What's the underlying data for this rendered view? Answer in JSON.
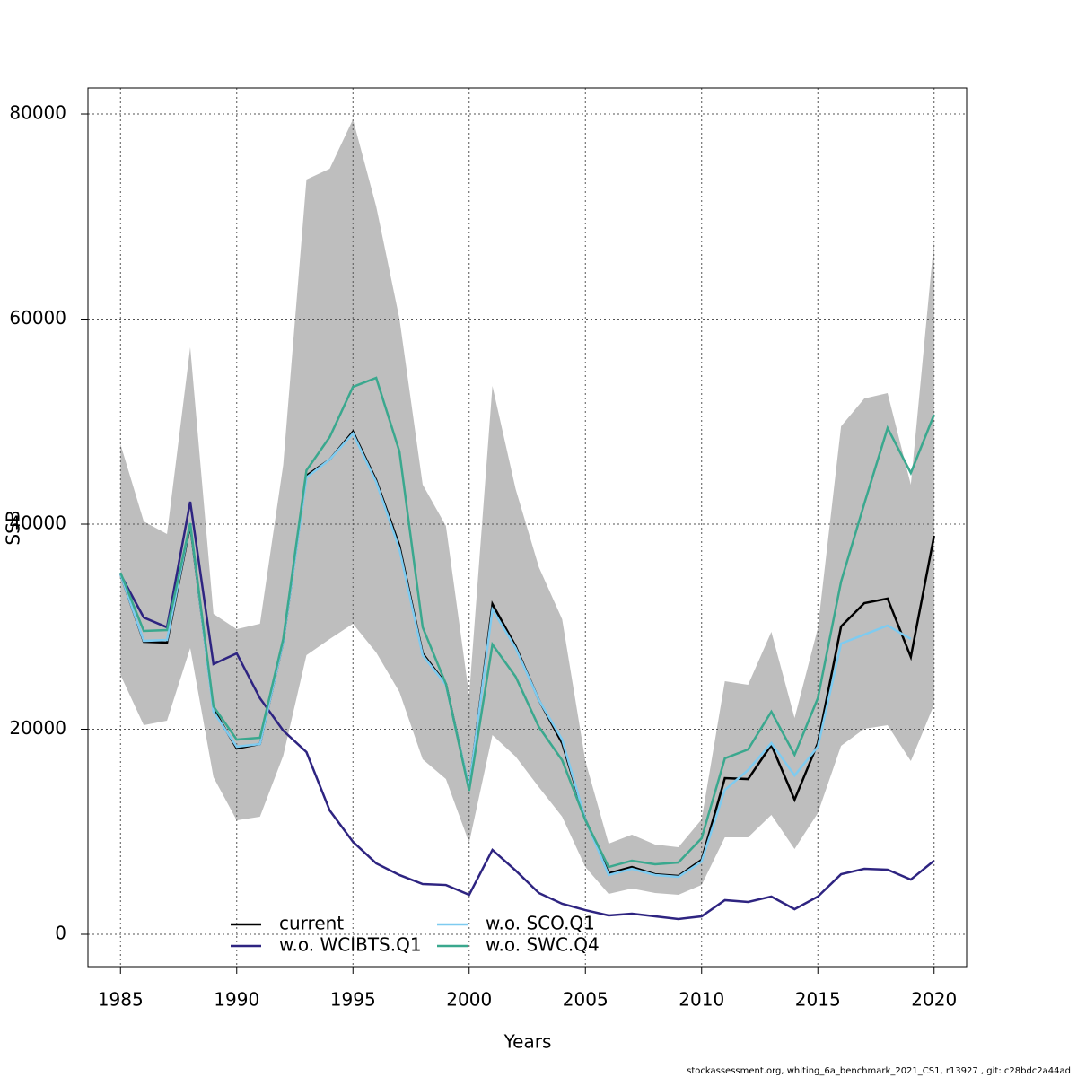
{
  "chart_data": {
    "type": "line",
    "xlabel": "Years",
    "ylabel": "SSB",
    "footer": "stockassessment.org, whiting_6a_benchmark_2021_CS1, r13927 , git: c28bdc2a44ad",
    "x": [
      1985,
      1986,
      1987,
      1988,
      1989,
      1990,
      1991,
      1992,
      1993,
      1994,
      1995,
      1996,
      1997,
      1998,
      1999,
      2000,
      2001,
      2002,
      2003,
      2004,
      2005,
      2006,
      2007,
      2008,
      2009,
      2010,
      2011,
      2012,
      2013,
      2014,
      2015,
      2016,
      2017,
      2018,
      2019,
      2020
    ],
    "band_color": "#bebebe",
    "band_upper": [
      47790,
      40260,
      39040,
      57250,
      31250,
      29760,
      30290,
      45780,
      73610,
      74660,
      79480,
      70990,
      60050,
      43850,
      39830,
      23280,
      53480,
      43410,
      35800,
      30720,
      16890,
      8840,
      9720,
      8750,
      8490,
      11200,
      24680,
      24330,
      29500,
      21090,
      29850,
      49540,
      52260,
      52780,
      43850,
      67660
    ],
    "band_lower": [
      25300,
      20390,
      20830,
      27920,
      15320,
      11120,
      11470,
      17420,
      27220,
      28800,
      30290,
      27480,
      23630,
      17070,
      15140,
      8930,
      19430,
      17330,
      14350,
      11470,
      6560,
      3940,
      4460,
      4030,
      3850,
      4810,
      9450,
      9450,
      11640,
      8320,
      11820,
      18380,
      20040,
      20390,
      16890,
      22410
    ],
    "series": [
      {
        "name": "current",
        "color": "#000000",
        "values": [
          35100,
          28530,
          28450,
          39900,
          21970,
          18120,
          18560,
          28530,
          44730,
          46300,
          49020,
          44290,
          37900,
          27400,
          24420,
          14180,
          32210,
          28100,
          22850,
          18640,
          11200,
          5950,
          6560,
          5860,
          5690,
          7260,
          15230,
          15140,
          18470,
          13130,
          18640,
          30020,
          32300,
          32740,
          27050,
          38860
        ]
      },
      {
        "name": "w.o. WCIBTS.Q1",
        "color": "#2e2481",
        "values": [
          35100,
          30900,
          29940,
          42190,
          26350,
          27400,
          23020,
          19870,
          17770,
          12080,
          9020,
          6920,
          5780,
          4900,
          4810,
          3850,
          8230,
          6220,
          4030,
          2980,
          2360,
          1840,
          2010,
          1750,
          1490,
          1750,
          3330,
          3150,
          3680,
          2450,
          3680,
          5860,
          6390,
          6300,
          5340,
          7180
        ]
      },
      {
        "name": "w.o. SCO.Q1",
        "color": "#7ecbf0",
        "values": [
          35100,
          28620,
          28710,
          40090,
          21710,
          18290,
          18560,
          28530,
          44550,
          46300,
          48840,
          44110,
          37550,
          27220,
          24330,
          14270,
          31690,
          27920,
          22850,
          18990,
          11200,
          5780,
          6390,
          5780,
          5600,
          7090,
          14090,
          16020,
          18640,
          15490,
          18290,
          28360,
          29230,
          30110,
          28800,
          null
        ]
      },
      {
        "name": "w.o. SWC.Q4",
        "color": "#3aa88e",
        "values": [
          35270,
          29590,
          29670,
          40090,
          22230,
          18990,
          19170,
          28800,
          45250,
          48490,
          53390,
          54270,
          47090,
          29940,
          24420,
          14000,
          28270,
          25120,
          20220,
          16980,
          11120,
          6560,
          7180,
          6830,
          7000,
          9370,
          17160,
          18030,
          21710,
          17510,
          23020,
          34400,
          42010,
          49370,
          44990,
          50680
        ]
      }
    ],
    "xlim": [
      1983.6,
      2021.4
    ],
    "ylim": [
      -3150,
      82540
    ],
    "xticks": [
      1985,
      1990,
      1995,
      2000,
      2005,
      2010,
      2015,
      2020
    ],
    "yticks": [
      0,
      20000,
      40000,
      60000,
      80000
    ],
    "grid": true,
    "legend": "bottom"
  }
}
